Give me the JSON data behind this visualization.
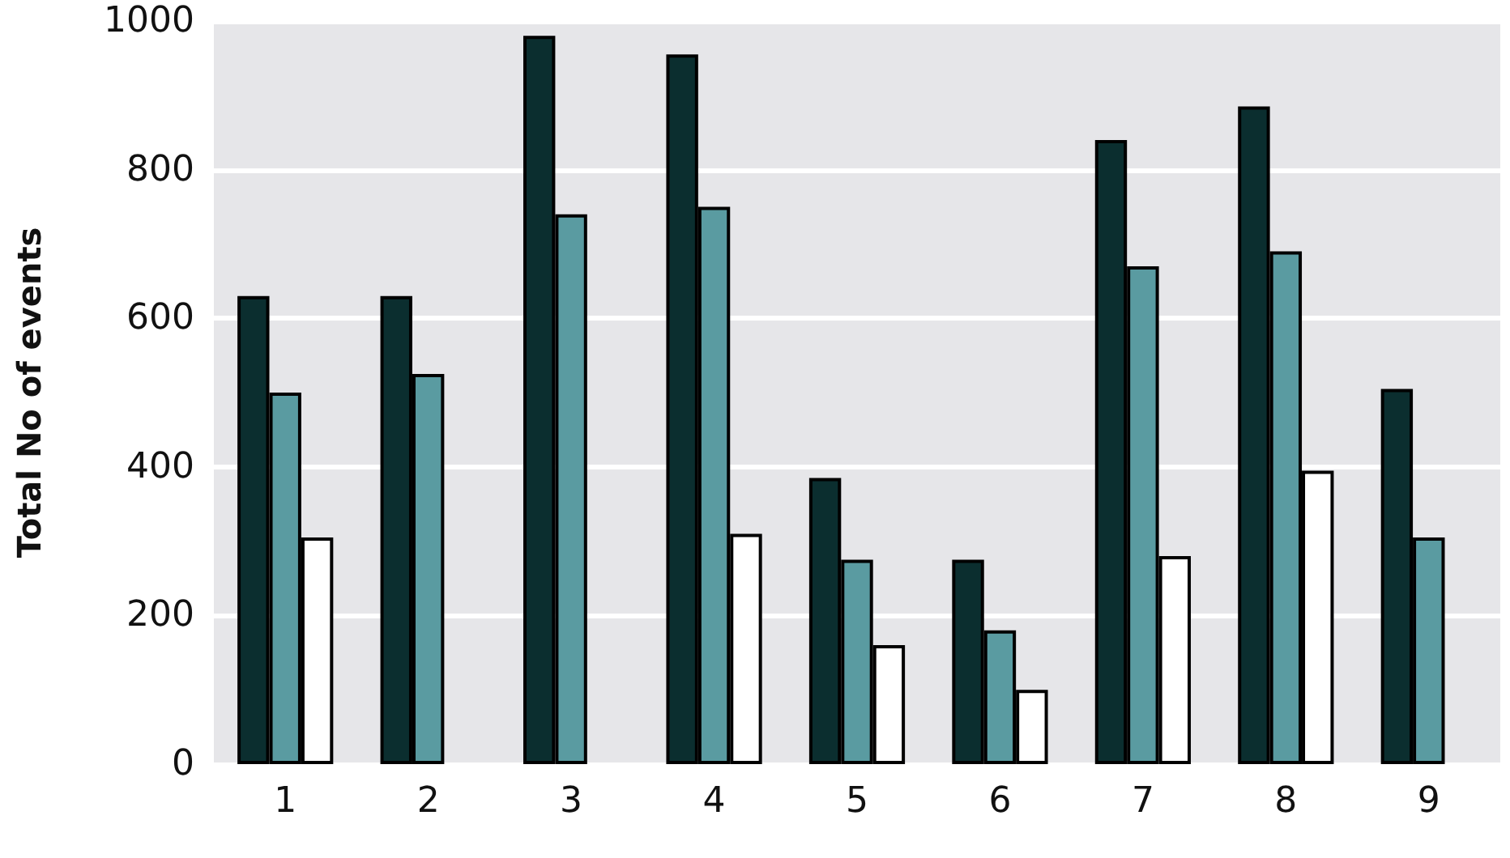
{
  "chart_data": {
    "type": "bar",
    "ylabel": "Total No of events",
    "categories": [
      "1",
      "2",
      "3",
      "4",
      "5",
      "6",
      "7",
      "8",
      "9"
    ],
    "series": [
      {
        "color": "#0b2e2f",
        "values": [
          630,
          630,
          980,
          955,
          385,
          275,
          840,
          885,
          505
        ]
      },
      {
        "color": "#5a9ba1",
        "values": [
          500,
          525,
          740,
          750,
          275,
          180,
          670,
          690,
          305
        ]
      },
      {
        "color": "#ffffff",
        "values": [
          305,
          null,
          null,
          310,
          160,
          100,
          280,
          395,
          null
        ]
      }
    ],
    "ylim": [
      0,
      1000
    ],
    "yticks": [
      0,
      200,
      400,
      600,
      800,
      1000
    ],
    "grid": "y"
  }
}
